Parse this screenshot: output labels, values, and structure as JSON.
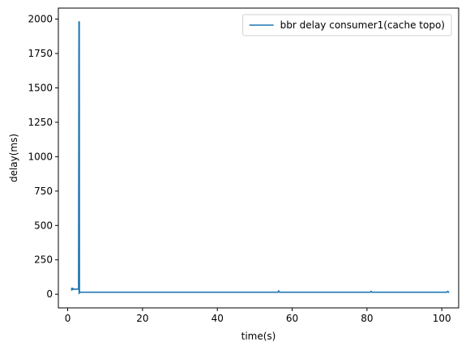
{
  "chart_data": {
    "type": "line",
    "title": "",
    "xlabel": "time(s)",
    "ylabel": "delay(ms)",
    "xlim": [
      -2.5,
      104.5
    ],
    "ylim": [
      -99,
      2080
    ],
    "xticks": [
      0,
      20,
      40,
      60,
      80,
      100
    ],
    "yticks": [
      0,
      250,
      500,
      750,
      1000,
      1250,
      1500,
      1750,
      2000
    ],
    "grid": false,
    "legend": "top-right",
    "series": [
      {
        "name": "bbr delay consumer1(cache topo)",
        "color": "#1f77b4",
        "x": [
          1.0,
          1.1,
          1.2,
          1.3,
          1.5,
          1.7,
          2.0,
          2.3,
          2.6,
          2.9,
          3.0,
          3.05,
          3.1,
          3.15,
          3.2,
          3.3,
          3.5,
          10,
          20,
          30,
          40,
          50,
          56.2,
          56.4,
          56.6,
          60,
          70,
          80,
          80.9,
          81.1,
          81.3,
          90,
          100,
          101.4,
          101.6,
          101.8,
          102.0
        ],
        "y": [
          45,
          30,
          45,
          35,
          40,
          35,
          38,
          36,
          38,
          37,
          1980,
          5,
          1980,
          15,
          15,
          15,
          15,
          15,
          15,
          15,
          15,
          15,
          15,
          25,
          15,
          15,
          15,
          15,
          15,
          22,
          15,
          15,
          15,
          15,
          22,
          15,
          15
        ]
      }
    ]
  }
}
